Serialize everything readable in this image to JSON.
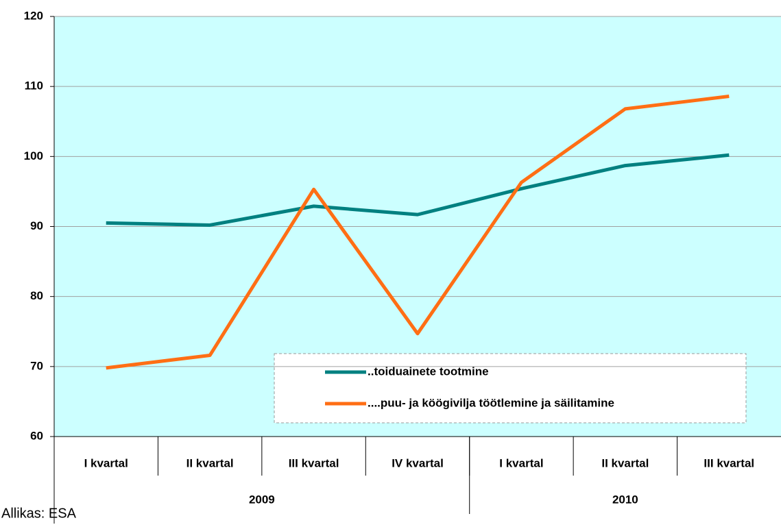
{
  "chart_data": {
    "type": "line",
    "categories": [
      "I kvartal",
      "II kvartal",
      "III kvartal",
      "IV kvartal",
      "I kvartal",
      "II kvartal",
      "III kvartal"
    ],
    "category_groups": [
      {
        "label": "2009",
        "count": 4
      },
      {
        "label": "2010",
        "count": 3
      }
    ],
    "series": [
      {
        "name": "..toiduainete tootmine",
        "color": "#008080",
        "values": [
          90.5,
          90.2,
          92.9,
          91.7,
          95.4,
          98.7,
          100.2
        ]
      },
      {
        "name": "....puu- ja köögivilja töötlemine ja säilitamine",
        "color": "#ff6e14",
        "values": [
          69.8,
          71.6,
          95.3,
          74.7,
          96.3,
          106.8,
          108.6
        ]
      }
    ],
    "ylim": [
      60,
      120
    ],
    "yticks": [
      60,
      70,
      80,
      90,
      100,
      110,
      120
    ],
    "grid": true,
    "source": "Allikas: ESA"
  }
}
